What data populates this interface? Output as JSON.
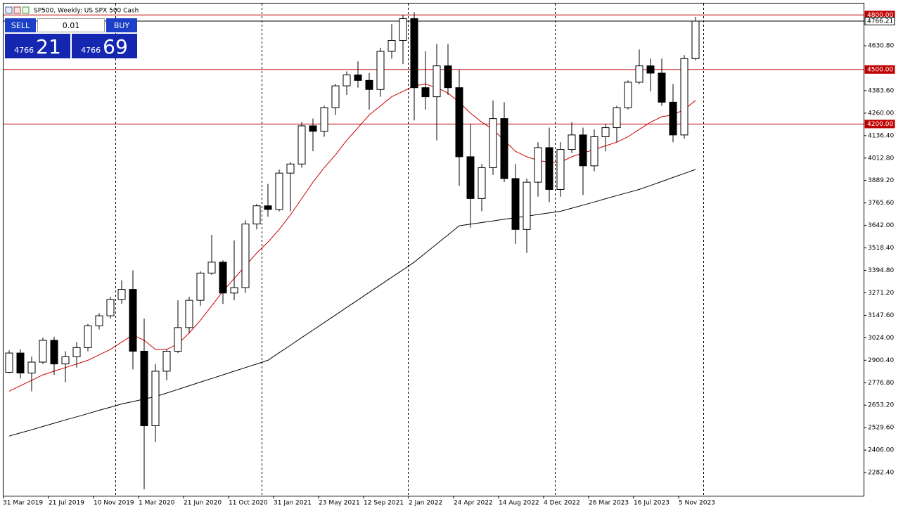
{
  "header": {
    "title": "SP500, Weekly:  US SPX 500 Cash"
  },
  "trade_panel": {
    "sell": "SELL",
    "buy": "BUY",
    "volume": "0.01",
    "sell_price_main": "4766",
    "sell_price_big": "21",
    "buy_price_main": "4766",
    "buy_price_big": "69"
  },
  "chart_data": {
    "type": "candlestick",
    "x": [
      "2019-03-31",
      "2019-04-28",
      "2019-05-26",
      "2019-06-23",
      "2019-07-21",
      "2019-08-18",
      "2019-09-15",
      "2019-10-13",
      "2019-11-10",
      "2019-12-08",
      "2020-01-05",
      "2020-02-02",
      "2020-03-01",
      "2020-03-29",
      "2020-04-26",
      "2020-05-24",
      "2020-06-21",
      "2020-07-19",
      "2020-08-16",
      "2020-09-13",
      "2020-10-11",
      "2020-11-08",
      "2020-12-06",
      "2021-01-03",
      "2021-01-31",
      "2021-02-28",
      "2021-03-28",
      "2021-04-25",
      "2021-05-23",
      "2021-06-20",
      "2021-07-18",
      "2021-08-15",
      "2021-09-12",
      "2021-10-10",
      "2021-11-07",
      "2021-12-05",
      "2022-01-02",
      "2022-01-30",
      "2022-02-27",
      "2022-03-27",
      "2022-04-24",
      "2022-05-22",
      "2022-06-19",
      "2022-07-17",
      "2022-08-14",
      "2022-09-11",
      "2022-10-09",
      "2022-11-06",
      "2022-12-04",
      "2023-01-01",
      "2023-01-29",
      "2023-02-26",
      "2023-03-26",
      "2023-04-23",
      "2023-05-21",
      "2023-06-18",
      "2023-07-16",
      "2023-08-13",
      "2023-09-10",
      "2023-10-08",
      "2023-11-05",
      "2023-12-03"
    ],
    "open": [
      2834,
      2940,
      2830,
      2890,
      3010,
      2880,
      2920,
      2970,
      3090,
      3145,
      3235,
      3290,
      2950,
      2540,
      2840,
      2950,
      3080,
      3230,
      3380,
      3440,
      3270,
      3300,
      3650,
      3750,
      3730,
      3930,
      3980,
      4190,
      4160,
      4290,
      4410,
      4470,
      4440,
      4390,
      4600,
      4660,
      4780,
      4400,
      4350,
      4520,
      4400,
      4020,
      3790,
      3960,
      4230,
      3900,
      3620,
      3880,
      4070,
      3840,
      4060,
      4140,
      3970,
      4130,
      4180,
      4290,
      4430,
      4520,
      4480,
      4320,
      4140,
      4560
    ],
    "high": [
      2955,
      2960,
      2920,
      3025,
      3030,
      2950,
      3000,
      3100,
      3160,
      3250,
      3340,
      3395,
      3130,
      2880,
      2960,
      3230,
      3250,
      3390,
      3590,
      3450,
      3560,
      3670,
      3760,
      3870,
      3950,
      3990,
      4210,
      4230,
      4300,
      4420,
      4490,
      4545,
      4480,
      4620,
      4750,
      4800,
      4815,
      4600,
      4640,
      4640,
      4500,
      4200,
      3980,
      4330,
      4320,
      3980,
      3900,
      4100,
      4180,
      4100,
      4210,
      4180,
      4170,
      4200,
      4300,
      4440,
      4610,
      4560,
      4560,
      4420,
      4580,
      4790
    ],
    "low": [
      2830,
      2800,
      2730,
      2880,
      2820,
      2780,
      2860,
      2950,
      3070,
      3130,
      3210,
      2850,
      2190,
      2450,
      2790,
      2940,
      3050,
      3200,
      3370,
      3210,
      3230,
      3270,
      3620,
      3690,
      3720,
      3720,
      3960,
      4050,
      4130,
      4250,
      4360,
      4400,
      4280,
      4350,
      4560,
      4530,
      4220,
      4280,
      4110,
      4360,
      3860,
      3630,
      3720,
      3920,
      3880,
      3540,
      3490,
      3800,
      3770,
      3800,
      4040,
      3810,
      3940,
      4050,
      4100,
      4280,
      4420,
      4380,
      4300,
      4100,
      4120,
      4550
    ],
    "close": [
      2940,
      2830,
      2890,
      3010,
      2880,
      2920,
      2970,
      3090,
      3145,
      3235,
      3290,
      2950,
      2540,
      2840,
      2950,
      3080,
      3230,
      3380,
      3440,
      3270,
      3300,
      3650,
      3750,
      3730,
      3930,
      3980,
      4190,
      4160,
      4290,
      4410,
      4470,
      4440,
      4390,
      4600,
      4660,
      4780,
      4400,
      4350,
      4520,
      4400,
      4020,
      3790,
      3960,
      4230,
      3900,
      3620,
      3880,
      4070,
      3840,
      4060,
      4140,
      3970,
      4130,
      4180,
      4290,
      4430,
      4520,
      4480,
      4320,
      4140,
      4560,
      4766.21
    ],
    "moving_averages": [
      {
        "color": "#d00000",
        "values": [
          2730,
          2760,
          2790,
          2820,
          2840,
          2860,
          2880,
          2900,
          2930,
          2960,
          3000,
          3040,
          3010,
          2960,
          2960,
          2990,
          3050,
          3120,
          3200,
          3280,
          3350,
          3420,
          3490,
          3550,
          3620,
          3700,
          3790,
          3880,
          3960,
          4030,
          4110,
          4180,
          4250,
          4300,
          4350,
          4380,
          4410,
          4420,
          4400,
          4370,
          4320,
          4260,
          4210,
          4170,
          4110,
          4050,
          4020,
          4000,
          3990,
          3990,
          4020,
          4040,
          4060,
          4080,
          4100,
          4130,
          4170,
          4210,
          4240,
          4250,
          4280,
          4330
        ]
      },
      {
        "color": "#000000",
        "values": [
          2483,
          2501,
          2518,
          2536,
          2554,
          2572,
          2589,
          2607,
          2625,
          2642,
          2660,
          2673,
          2687,
          2700,
          2720,
          2740,
          2760,
          2780,
          2800,
          2820,
          2840,
          2860,
          2880,
          2900,
          2942,
          2983,
          3025,
          3066,
          3108,
          3149,
          3191,
          3232,
          3274,
          3315,
          3357,
          3398,
          3440,
          3490,
          3540,
          3590,
          3640,
          3649,
          3658,
          3667,
          3676,
          3684,
          3693,
          3702,
          3711,
          3720,
          3737,
          3754,
          3771,
          3789,
          3806,
          3823,
          3840,
          3862,
          3884,
          3906,
          3928,
          3950
        ]
      }
    ],
    "levels": [
      {
        "value": 4800,
        "label": "4800.00",
        "color": "#c00000"
      },
      {
        "value": 4500,
        "label": "4500.00",
        "color": "#c00000"
      },
      {
        "value": 4200,
        "label": "4200.00",
        "color": "#c00000"
      }
    ],
    "price_line": {
      "value": 4766.21,
      "label": "4766.21",
      "color": "#000000"
    },
    "ylim": [
      2155,
      4863
    ],
    "yticks": [
      {
        "value": 4630.8,
        "label": "4630.80"
      },
      {
        "value": 4383.6,
        "label": "4383.60"
      },
      {
        "value": 4260,
        "label": "4260.00"
      },
      {
        "value": 4136.4,
        "label": "4136.40"
      },
      {
        "value": 4012.8,
        "label": "4012.80"
      },
      {
        "value": 3889.2,
        "label": "3889.20"
      },
      {
        "value": 3765.6,
        "label": "3765.60"
      },
      {
        "value": 3642,
        "label": "3642.00"
      },
      {
        "value": 3518.4,
        "label": "3518.40"
      },
      {
        "value": 3394.8,
        "label": "3394.80"
      },
      {
        "value": 3271.2,
        "label": "3271.20"
      },
      {
        "value": 3147.6,
        "label": "3147.60"
      },
      {
        "value": 3024,
        "label": "3024.00"
      },
      {
        "value": 2900.4,
        "label": "2900.40"
      },
      {
        "value": 2776.8,
        "label": "2776.80"
      },
      {
        "value": 2653.2,
        "label": "2653.20"
      },
      {
        "value": 2529.6,
        "label": "2529.60"
      },
      {
        "value": 2406,
        "label": "2406.00"
      },
      {
        "value": 2282.4,
        "label": "2282.40"
      }
    ],
    "xtick_labels": [
      "31 Mar 2019",
      "21 Jul 2019",
      "10 Nov 2019",
      "1 Mar 2020",
      "21 Jun 2020",
      "11 Oct 2020",
      "31 Jan 2021",
      "23 May 2021",
      "12 Sep 2021",
      "2 Jan 2022",
      "24 Apr 2022",
      "14 Aug 2022",
      "4 Dec 2022",
      "26 Mar 2023",
      "16 Jul 2023",
      "5 Nov 2023"
    ]
  }
}
